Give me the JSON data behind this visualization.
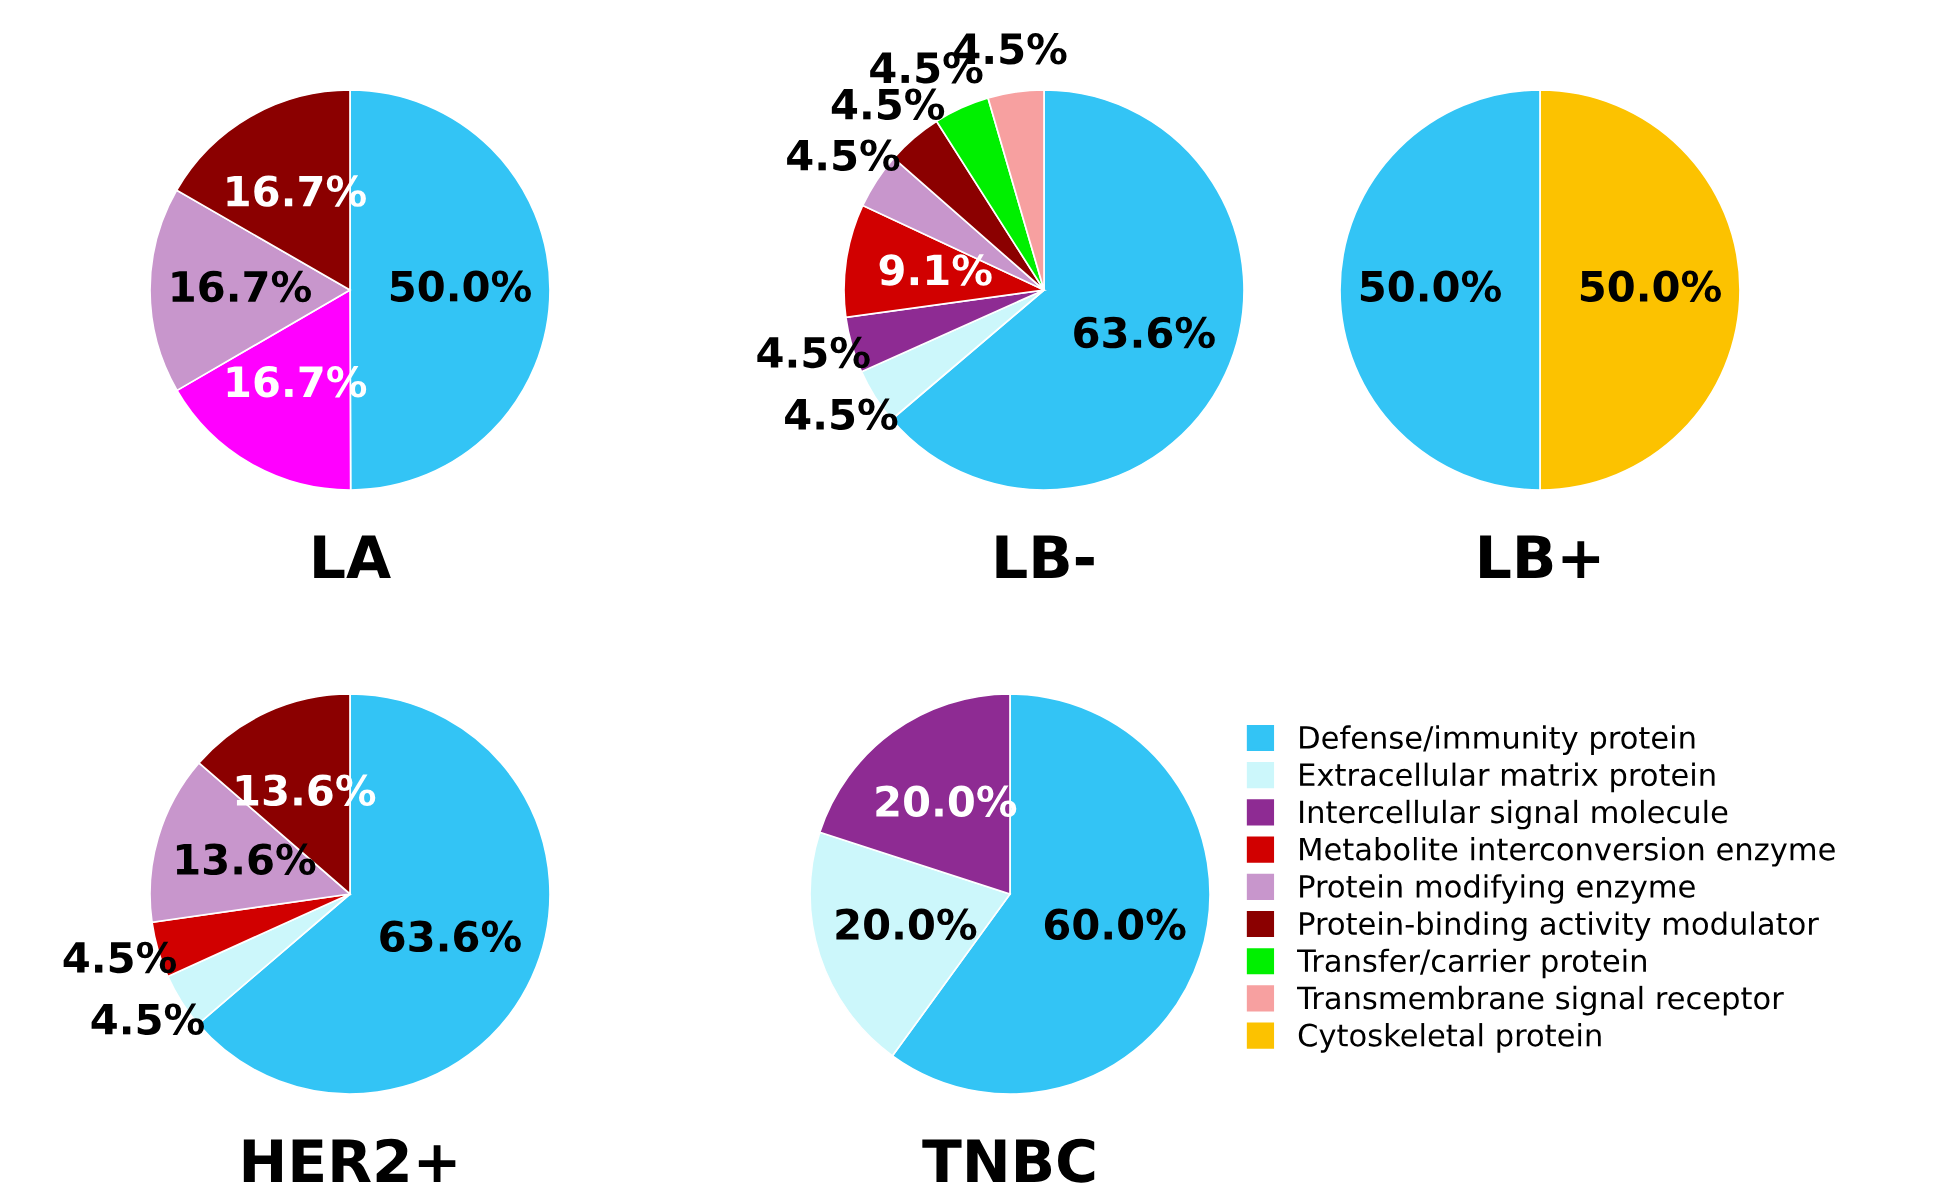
{
  "chart_data": [
    {
      "type": "pie",
      "title": "LA",
      "categories": [
        null,
        null,
        null,
        null
      ],
      "values": [
        50.0,
        16.7,
        16.7,
        16.7
      ],
      "value_labels": [
        "50.0%",
        "16.7%",
        "16.7%",
        "16.7%"
      ],
      "colors": [
        "#33c4f5",
        "#ff00ff",
        "#c896cc",
        "#8b0000"
      ]
    },
    {
      "type": "pie",
      "title": "LB-",
      "categories": [
        null,
        null,
        null,
        null,
        null,
        null,
        null,
        null
      ],
      "values": [
        63.6,
        4.5,
        4.5,
        9.1,
        4.5,
        4.5,
        4.5,
        4.5
      ],
      "value_labels": [
        "63.6%",
        "4.5%",
        "4.5%",
        "9.1%",
        "4.5%",
        "4.5%",
        "4.5%",
        "4.5%"
      ],
      "colors": [
        "#33c4f5",
        "#ccf7fb",
        "#8e2b93",
        "#d10000",
        "#c896cc",
        "#8b0000",
        "#00f000",
        "#f7a0a0"
      ]
    },
    {
      "type": "pie",
      "title": "LB+",
      "categories": [
        null,
        null
      ],
      "values": [
        50.0,
        50.0
      ],
      "value_labels": [
        "50.0%",
        "50.0%"
      ],
      "colors": [
        "#fcc200",
        "#33c4f5"
      ]
    },
    {
      "type": "pie",
      "title": "HER2+",
      "categories": [
        null,
        null,
        null,
        null,
        null
      ],
      "values": [
        63.6,
        4.5,
        4.5,
        13.6,
        13.6
      ],
      "value_labels": [
        "63.6%",
        "4.5%",
        "4.5%",
        "13.6%",
        "13.6%"
      ],
      "colors": [
        "#33c4f5",
        "#ccf7fb",
        "#d10000",
        "#c896cc",
        "#8b0000"
      ]
    },
    {
      "type": "pie",
      "title": "TNBC",
      "categories": [
        null,
        null,
        null
      ],
      "values": [
        60.0,
        20.0,
        20.0
      ],
      "value_labels": [
        "60.0%",
        "20.0%",
        "20.0%"
      ],
      "colors": [
        "#33c4f5",
        "#ccf7fb",
        "#8e2b93"
      ]
    },
    {
      "type": "other",
      "categories": [
        "Defense/immunity protein",
        "Extracellular matrix protein",
        "Intercellular signal molecule",
        "Metabolite interconversion enzyme",
        "Protein modifying enzyme",
        "Protein-binding activity modulator",
        "Transfer/carrier protein",
        "Transmembrane signal receptor",
        "Cytoskeletal protein"
      ],
      "colors": [
        "#33c4f5",
        "#ccf7fb",
        "#8e2b93",
        "#d10000",
        "#c896cc",
        "#8b0000",
        "#00f000",
        "#f7a0a0",
        "#fcc200"
      ]
    }
  ]
}
